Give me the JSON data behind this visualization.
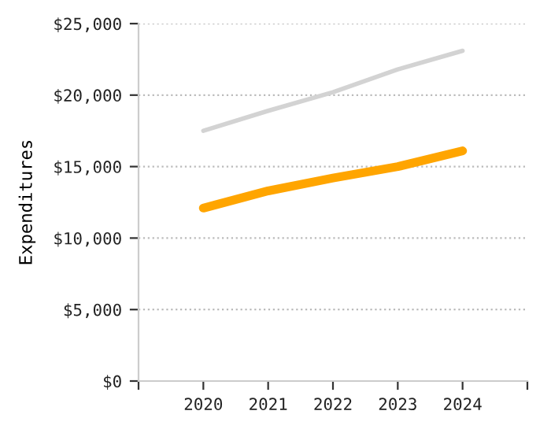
{
  "chart_data": {
    "type": "line",
    "ylabel": "Expenditures",
    "x": [
      2020,
      2021,
      2022,
      2023,
      2024
    ],
    "series": [
      {
        "color": "#d3d3d3",
        "values": [
          17500,
          18900,
          20200,
          21800,
          23100
        ]
      },
      {
        "color": "#ffa500",
        "values": [
          12100,
          13300,
          14200,
          15000,
          16100
        ]
      }
    ],
    "xlim": [
      2019,
      2025
    ],
    "xticks": [
      {
        "value": 2019,
        "label": null
      },
      2020,
      2021,
      2022,
      2023,
      2024,
      {
        "value": 2025,
        "label": null
      }
    ],
    "ylim": [
      0,
      25000
    ],
    "yticks": [
      {
        "value": 0,
        "label": "$0"
      },
      {
        "value": 5000,
        "label": "$5,000"
      },
      {
        "value": 10000,
        "label": "$10,000"
      },
      {
        "value": 15000,
        "label": "$15,000"
      },
      {
        "value": 20000,
        "label": "$20,000"
      },
      {
        "value": 25000,
        "label": "$25,000"
      }
    ],
    "grid": "y",
    "marker": "none",
    "line_style": "solid"
  }
}
